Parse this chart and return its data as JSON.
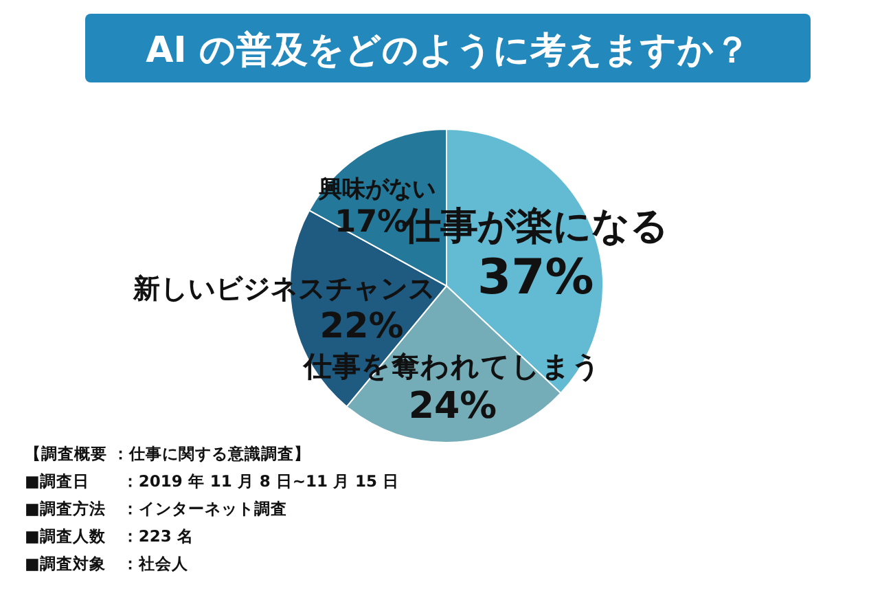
{
  "chart_data": {
    "type": "pie",
    "title": "AI の普及をどのように考えますか？",
    "categories": [
      "仕事が楽になる",
      "仕事を奪われてしまう",
      "新しいビジネスチャンス",
      "興味がない"
    ],
    "values": [
      37,
      24,
      22,
      17
    ],
    "colors": [
      "#62bad3",
      "#74adb8",
      "#1f5a80",
      "#24789a"
    ],
    "value_labels": [
      "37%",
      "24%",
      "22%",
      "17%"
    ],
    "annotations": [
      "【調査概要 ：仕事に関する意識調査】",
      "■調査日　　：2019 年 11 月 8 日~11 月 15 日",
      "■調査方法　：インターネット調査",
      "■調査人数　：223 名",
      "■調査対象　：社会人"
    ]
  }
}
